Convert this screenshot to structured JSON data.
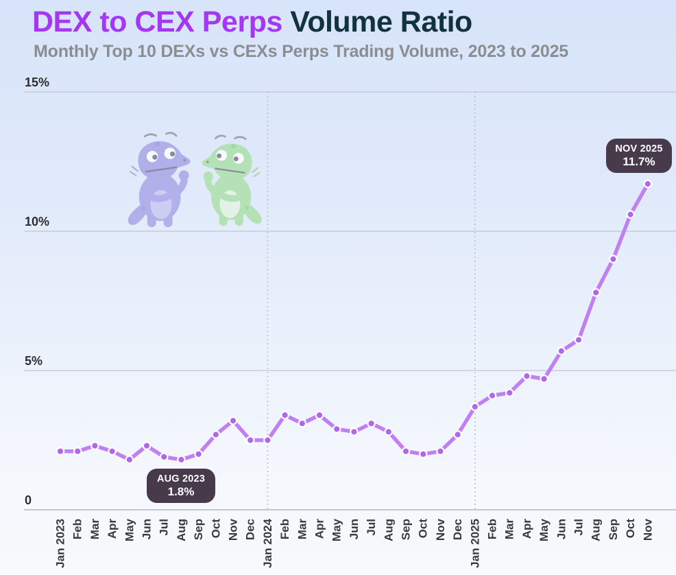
{
  "header": {
    "title_highlight": "DEX to CEX Perps ",
    "title_rest": "Volume Ratio",
    "subtitle": "Monthly Top 10 DEXs vs CEXs Perps Trading Volume, 2023 to 2025"
  },
  "annotations": {
    "low": {
      "label": "AUG 2023",
      "value": "1.8%"
    },
    "high": {
      "label": "NOV 2025",
      "value": "11.7%"
    }
  },
  "mascots": {
    "left": "purple-gecko",
    "right": "green-gecko"
  },
  "colors": {
    "line": "#c180f2",
    "marker": "#b168e8",
    "marker_ring": "#ffffff",
    "gridline": "#c8ccd5",
    "axis_line": "#b4b8c3",
    "guide_dash": "#b9bdc7",
    "badge_bg": "#473a4b",
    "title_purple": "#a438f2",
    "title_dark": "#133240",
    "subtitle_gray": "#8b8d91"
  },
  "chart_data": {
    "type": "line",
    "title": "DEX to CEX Perps Volume Ratio",
    "subtitle": "Monthly Top 10 DEXs vs CEXs Perps Trading Volume, 2023 to 2025",
    "x": [
      "Jan 2023",
      "Feb",
      "Mar",
      "Apr",
      "May",
      "Jun",
      "Jul",
      "Aug",
      "Sep",
      "Oct",
      "Nov",
      "Dec",
      "Jan 2024",
      "Feb",
      "Mar",
      "Apr",
      "May",
      "Jun",
      "Jul",
      "Aug",
      "Sep",
      "Oct",
      "Nov",
      "Dec",
      "Jan 2025",
      "Feb",
      "Mar",
      "Apr",
      "May",
      "Jun",
      "Jul",
      "Aug",
      "Sep",
      "Oct",
      "Nov"
    ],
    "series": [
      {
        "name": "DEX to CEX perps volume ratio (%)",
        "values": [
          2.1,
          2.1,
          2.3,
          2.1,
          1.8,
          2.3,
          1.9,
          1.8,
          2.0,
          2.7,
          3.2,
          2.5,
          2.5,
          3.4,
          3.1,
          3.4,
          2.9,
          2.8,
          3.1,
          2.8,
          2.1,
          2.0,
          2.1,
          2.7,
          3.7,
          4.1,
          4.2,
          4.8,
          4.7,
          5.7,
          6.1,
          7.8,
          9.0,
          10.6,
          11.7
        ]
      }
    ],
    "ylim": [
      0,
      15
    ],
    "yticks": [
      {
        "value": 0,
        "label": "0"
      },
      {
        "value": 5,
        "label": "5%"
      },
      {
        "value": 10,
        "label": "10%"
      },
      {
        "value": 15,
        "label": "15%"
      }
    ],
    "grid": "horizontal",
    "vertical_guides": [
      "Jan 2024",
      "Jan 2025"
    ],
    "legend": "none",
    "point_annotations": [
      {
        "x": "Aug 2023",
        "text": "AUG 2023 1.8%"
      },
      {
        "x": "Nov 2025",
        "text": "NOV 2025 11.7%"
      }
    ]
  }
}
